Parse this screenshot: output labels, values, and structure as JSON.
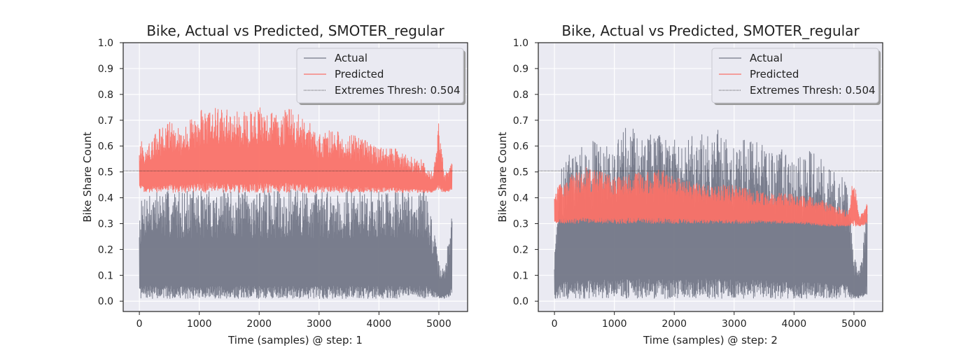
{
  "chart_data": [
    {
      "type": "line",
      "title": "Bike, Actual vs Predicted, SMOTER_regular",
      "xlabel": "Time (samples) @ step: 1",
      "ylabel": "Bike Share Count",
      "xlim": [
        -270,
        5480
      ],
      "ylim": [
        -0.04,
        1.0
      ],
      "xticks": [
        0,
        1000,
        2000,
        3000,
        4000,
        5000
      ],
      "yticks": [
        0.0,
        0.1,
        0.2,
        0.3,
        0.4,
        0.5,
        0.6,
        0.7,
        0.8,
        0.9,
        1.0
      ],
      "legend_position": "upper right",
      "grid": true,
      "threshold": {
        "name": "Extremes Thresh: 0.504",
        "value": 0.504
      },
      "series": [
        {
          "name": "Actual",
          "color": "#737787",
          "envelope": {
            "x": [
              0,
              100,
              200,
              500,
              1000,
              1500,
              2000,
              2500,
              3000,
              3500,
              4000,
              4500,
              4800,
              4900,
              5000,
              5100,
              5220
            ],
            "low": [
              0.01,
              0.01,
              0.01,
              0.01,
              0.01,
              0.01,
              0.01,
              0.01,
              0.01,
              0.01,
              0.01,
              0.01,
              0.01,
              0.01,
              0.01,
              0.01,
              0.02
            ],
            "high": [
              0.37,
              0.43,
              0.43,
              0.43,
              0.43,
              0.43,
              0.43,
              0.43,
              0.43,
              0.43,
              0.43,
              0.43,
              0.43,
              0.3,
              0.15,
              0.12,
              0.37
            ]
          }
        },
        {
          "name": "Predicted",
          "color": "#fa7268",
          "envelope": {
            "x": [
              0,
              100,
              300,
              500,
              700,
              1000,
              1200,
              1500,
              1800,
              2000,
              2300,
              2500,
              2800,
              3000,
              3300,
              3500,
              3800,
              4000,
              4300,
              4500,
              4700,
              4900,
              5000,
              5100,
              5220
            ],
            "low": [
              0.43,
              0.42,
              0.42,
              0.42,
              0.42,
              0.42,
              0.42,
              0.42,
              0.42,
              0.42,
              0.42,
              0.42,
              0.42,
              0.42,
              0.42,
              0.42,
              0.42,
              0.42,
              0.42,
              0.42,
              0.42,
              0.42,
              0.42,
              0.42,
              0.43
            ],
            "high": [
              0.63,
              0.6,
              0.66,
              0.7,
              0.67,
              0.74,
              0.76,
              0.74,
              0.73,
              0.75,
              0.72,
              0.75,
              0.7,
              0.66,
              0.66,
              0.65,
              0.62,
              0.6,
              0.59,
              0.56,
              0.55,
              0.5,
              0.71,
              0.49,
              0.55
            ]
          }
        }
      ]
    },
    {
      "type": "line",
      "title": "Bike, Actual vs Predicted, SMOTER_regular",
      "xlabel": "Time (samples) @ step: 2",
      "ylabel": "Bike Share Count",
      "xlim": [
        -270,
        5480
      ],
      "ylim": [
        -0.04,
        1.0
      ],
      "xticks": [
        0,
        1000,
        2000,
        3000,
        4000,
        5000
      ],
      "yticks": [
        0.0,
        0.1,
        0.2,
        0.3,
        0.4,
        0.5,
        0.6,
        0.7,
        0.8,
        0.9,
        1.0
      ],
      "legend_position": "upper right",
      "grid": true,
      "threshold": {
        "name": "Extremes Thresh: 0.504",
        "value": 0.504
      },
      "series": [
        {
          "name": "Actual",
          "color": "#737787",
          "envelope": {
            "x": [
              0,
              100,
              200,
              500,
              800,
              1000,
              1200,
              1500,
              1800,
              2000,
              2300,
              2500,
              2800,
              3000,
              3300,
              3500,
              3800,
              4000,
              4300,
              4500,
              4800,
              4900,
              5000,
              5100,
              5220
            ],
            "low": [
              0.01,
              0.01,
              0.01,
              0.01,
              0.01,
              0.01,
              0.01,
              0.01,
              0.01,
              0.01,
              0.01,
              0.01,
              0.01,
              0.01,
              0.01,
              0.01,
              0.01,
              0.01,
              0.01,
              0.01,
              0.01,
              0.01,
              0.01,
              0.01,
              0.02
            ],
            "high": [
              0.18,
              0.5,
              0.59,
              0.6,
              0.64,
              0.6,
              0.68,
              0.65,
              0.64,
              0.63,
              0.64,
              0.67,
              0.66,
              0.62,
              0.63,
              0.6,
              0.59,
              0.54,
              0.59,
              0.54,
              0.51,
              0.46,
              0.17,
              0.13,
              0.38
            ]
          }
        },
        {
          "name": "Predicted",
          "color": "#fa7268",
          "envelope": {
            "x": [
              0,
              100,
              200,
              500,
              1000,
              1500,
              1800,
              2000,
              2500,
              3000,
              3500,
              4000,
              4500,
              4900,
              5000,
              5100,
              5220
            ],
            "low": [
              0.3,
              0.3,
              0.3,
              0.3,
              0.3,
              0.3,
              0.3,
              0.3,
              0.3,
              0.3,
              0.3,
              0.3,
              0.29,
              0.29,
              0.29,
              0.29,
              0.3
            ],
            "high": [
              0.44,
              0.46,
              0.48,
              0.52,
              0.49,
              0.5,
              0.51,
              0.48,
              0.45,
              0.45,
              0.42,
              0.42,
              0.39,
              0.35,
              0.5,
              0.33,
              0.38
            ]
          }
        }
      ]
    }
  ]
}
